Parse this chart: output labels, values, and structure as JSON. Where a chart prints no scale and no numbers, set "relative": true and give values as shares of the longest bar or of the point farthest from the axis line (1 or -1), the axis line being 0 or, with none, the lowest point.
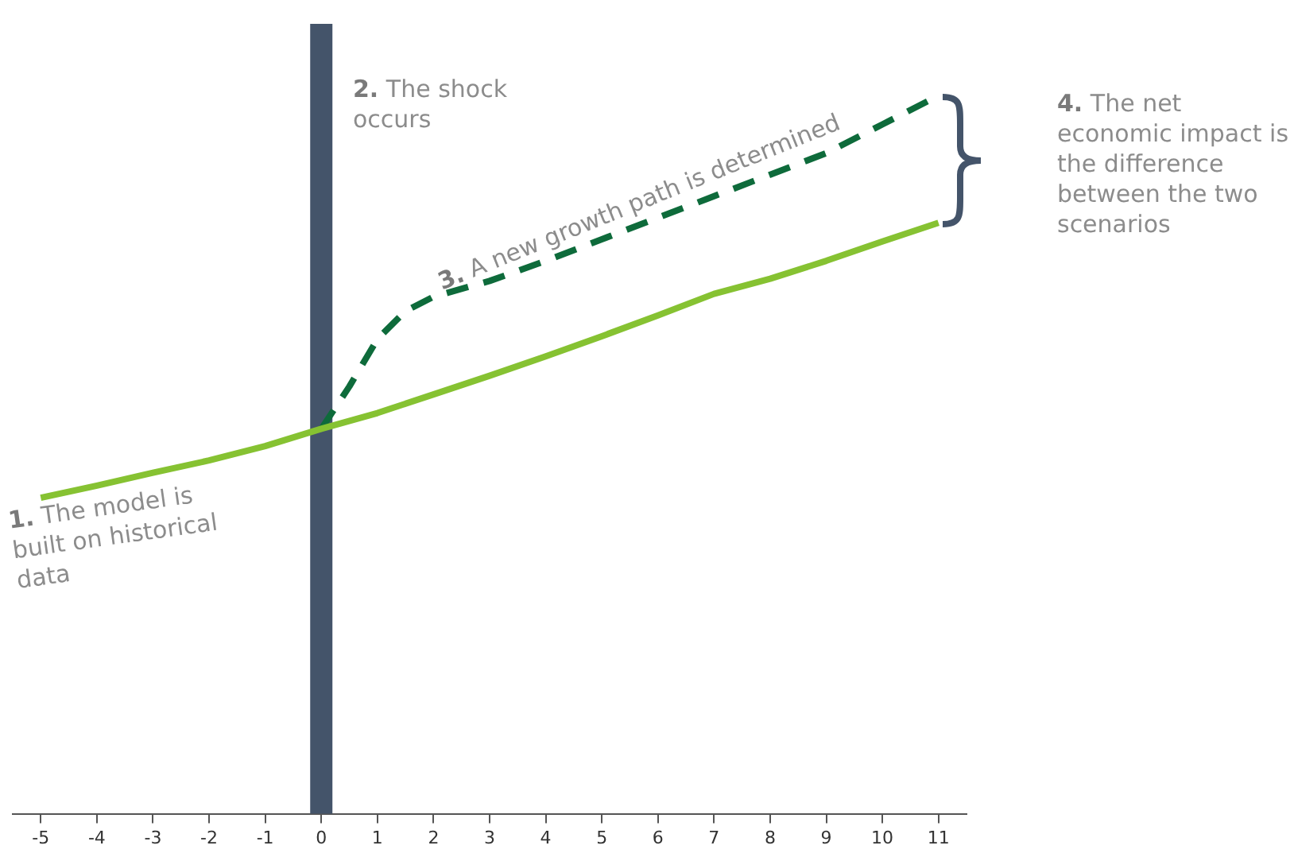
{
  "chart_data": {
    "type": "line",
    "relative": true,
    "tick_labels": "x",
    "grid": false,
    "legend": false,
    "marker": "none",
    "xlim": [
      -5.5,
      11.5
    ],
    "xticks": [
      -5,
      -4,
      -3,
      -2,
      -1,
      0,
      1,
      2,
      3,
      4,
      5,
      6,
      7,
      8,
      9,
      10,
      11
    ],
    "series": [
      {
        "color": "#86c232",
        "line_style": "solid",
        "x": [
          -5,
          -4,
          -3,
          -2,
          -1,
          0,
          1,
          2,
          3,
          4,
          5,
          6,
          7,
          8,
          9,
          10,
          11
        ],
        "values": [
          0.44,
          0.457,
          0.475,
          0.492,
          0.512,
          0.536,
          0.558,
          0.584,
          0.61,
          0.637,
          0.665,
          0.694,
          0.724,
          0.745,
          0.77,
          0.797,
          0.823
        ]
      },
      {
        "color": "#0e6b3b",
        "line_style": "dashed",
        "x": [
          0,
          0.5,
          1,
          1.5,
          2,
          3,
          4,
          5,
          6,
          7,
          8,
          9,
          10,
          11
        ],
        "values": [
          0.536,
          0.595,
          0.661,
          0.7,
          0.72,
          0.742,
          0.77,
          0.8,
          0.83,
          0.86,
          0.89,
          0.92,
          0.96,
          1
        ]
      }
    ],
    "ref_lines": [
      {
        "axis": "x",
        "value": 0,
        "color": "#44546a"
      }
    ],
    "annotations": [
      "1. The model is built on historical data",
      "2. The shock occurs",
      "3. A new growth path is determined",
      "4. The net economic impact is the difference between the two scenarios"
    ]
  }
}
